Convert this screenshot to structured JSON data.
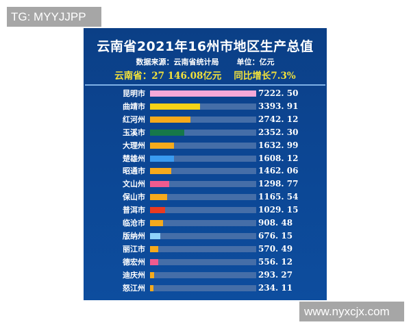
{
  "watermarks": {
    "top_left": "TG: MYYJJPP",
    "bottom_right": "www.nyxcjx.com"
  },
  "header": {
    "title": "云南省2021年16州市地区生产总值",
    "source": "数据来源：云南省统计局",
    "unit": "单位：亿元",
    "total": "云南省：27 146.08亿元",
    "growth": "同比增长7.3%"
  },
  "colors": {
    "panel_bg": "#0c4592",
    "track": "#456ea8",
    "title_text": "#ffffff",
    "summary_text": "#f3e23a"
  },
  "rows": [
    {
      "name": "昆明市",
      "value": "7222. 50",
      "color": "#f6a9d8"
    },
    {
      "name": "曲靖市",
      "value": "3393. 91",
      "color": "#f5d316"
    },
    {
      "name": "红河州",
      "value": "2742. 12",
      "color": "#f6aa1c"
    },
    {
      "name": "玉溪市",
      "value": "2352. 30",
      "color": "#16784a"
    },
    {
      "name": "大理州",
      "value": "1632. 99",
      "color": "#f6aa1c"
    },
    {
      "name": "楚雄州",
      "value": "1608. 12",
      "color": "#3a9bf0"
    },
    {
      "name": "昭通市",
      "value": "1462. 06",
      "color": "#f6aa1c"
    },
    {
      "name": "文山州",
      "value": "1298. 77",
      "color": "#ef5b8f"
    },
    {
      "name": "保山市",
      "value": "1165. 54",
      "color": "#f6aa1c"
    },
    {
      "name": "普洱市",
      "value": "1029. 15",
      "color": "#ec3a20"
    },
    {
      "name": "临沧市",
      "value": "908. 48",
      "color": "#f6aa1c"
    },
    {
      "name": "版纳州",
      "value": "676. 15",
      "color": "#8fd3fb"
    },
    {
      "name": "丽江市",
      "value": "570. 49",
      "color": "#f6aa1c"
    },
    {
      "name": "德宏州",
      "value": "556. 12",
      "color": "#ef5b8f"
    },
    {
      "name": "迪庆州",
      "value": "293. 27",
      "color": "#f6aa1c"
    },
    {
      "name": "怒江州",
      "value": "234. 11",
      "color": "#f6aa1c"
    }
  ],
  "chart_data": {
    "type": "bar",
    "orientation": "horizontal",
    "title": "云南省2021年16州市地区生产总值",
    "subtitle": "数据来源：云南省统计局  单位：亿元",
    "annotation": "云南省：27 146.08亿元  同比增长7.3%",
    "xlabel": "",
    "ylabel": "",
    "unit": "亿元",
    "categories": [
      "昆明市",
      "曲靖市",
      "红河州",
      "玉溪市",
      "大理州",
      "楚雄州",
      "昭通市",
      "文山州",
      "保山市",
      "普洱市",
      "临沧市",
      "版纳州",
      "丽江市",
      "德宏州",
      "迪庆州",
      "怒江州"
    ],
    "values": [
      7222.5,
      3393.91,
      2742.12,
      2352.3,
      1632.99,
      1608.12,
      1462.06,
      1298.77,
      1165.54,
      1029.15,
      908.48,
      676.15,
      570.49,
      556.12,
      293.27,
      234.11
    ],
    "xlim": [
      0,
      7222.5
    ],
    "grid": false,
    "legend": "none"
  }
}
